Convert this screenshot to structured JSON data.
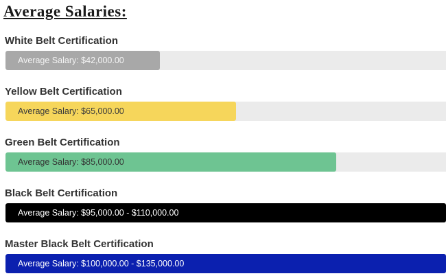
{
  "page": {
    "title": "Average Salaries:"
  },
  "chart_data": {
    "type": "bar",
    "orientation": "horizontal",
    "title": "Average Salaries:",
    "unit": "USD",
    "grid": false,
    "legend": "none",
    "track_color": "#ebebeb",
    "categories": [
      "White Belt Certification",
      "Yellow Belt Certification",
      "Green Belt Certification",
      "Black Belt Certification",
      "Master Black Belt Certification"
    ],
    "bars": [
      {
        "label": "White Belt Certification",
        "value_label": "Average Salary: $42,000.00",
        "salary_min": 42000,
        "salary_max": 42000,
        "width_pct": 35,
        "color": "#a8a8a8",
        "text_color": "#f4f4f4"
      },
      {
        "label": "Yellow Belt Certification",
        "value_label": "Average Salary: $65,000.00",
        "salary_min": 65000,
        "salary_max": 65000,
        "width_pct": 52.4,
        "color": "#f6d65b",
        "text_color": "#3b3b3b"
      },
      {
        "label": "Green Belt Certification",
        "value_label": "Average Salary: $85,000.00",
        "salary_min": 85000,
        "salary_max": 85000,
        "width_pct": 75.1,
        "color": "#6ec492",
        "text_color": "#333333"
      },
      {
        "label": "Black Belt Certification",
        "value_label": "Average Salary: $95,000.00 - $110,000.00",
        "salary_min": 95000,
        "salary_max": 110000,
        "width_pct": 100,
        "color": "#000000",
        "text_color": "#ffffff"
      },
      {
        "label": "Master Black Belt Certification",
        "value_label": "Average Salary: $100,000.00 - $135,000.00",
        "salary_min": 100000,
        "salary_max": 135000,
        "width_pct": 100,
        "color": "#0b20af",
        "text_color": "#ffffff"
      }
    ]
  }
}
